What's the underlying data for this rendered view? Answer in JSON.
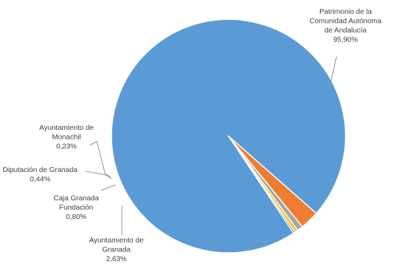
{
  "chart_data": {
    "type": "pie",
    "title": "",
    "slices": [
      {
        "name": "Patrimonio de la Comunidad Autónoma de Andalucía",
        "label_lines": [
          "Patrimonio de la",
          "Comunidad Autónoma",
          "de Andalucía"
        ],
        "value_label": "95,90%",
        "value": 95.9,
        "color": "#5b9bd5"
      },
      {
        "name": "Ayuntamiento de Granada",
        "label_lines": [
          "Ayuntamiento de",
          "Granada"
        ],
        "value_label": "2,63%",
        "value": 2.63,
        "color": "#ed7d31"
      },
      {
        "name": "Caja Granada Fundación",
        "label_lines": [
          "Caja Granada",
          "Fundación"
        ],
        "value_label": "0,80%",
        "value": 0.8,
        "color": "#a5a5a5"
      },
      {
        "name": "Diputación de Granada",
        "label_lines": [
          "Diputación de Granada"
        ],
        "value_label": "0,44%",
        "value": 0.44,
        "color": "#ffc000"
      },
      {
        "name": "Ayuntamiento de Monachil",
        "label_lines": [
          "Ayuntamiento de",
          "Monachil"
        ],
        "value_label": "0,23%",
        "value": 0.23,
        "color": "#4472c4"
      }
    ]
  }
}
